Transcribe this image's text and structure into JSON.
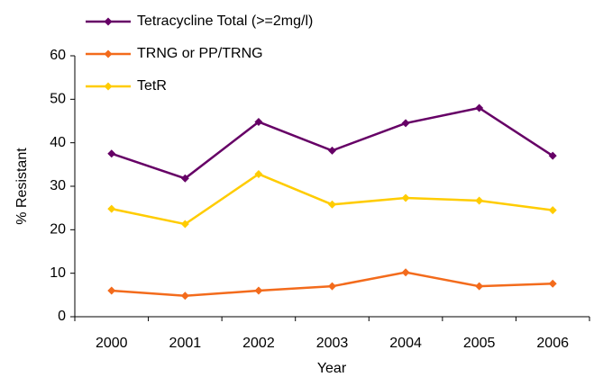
{
  "chart_data": {
    "type": "line",
    "categories": [
      "2000",
      "2001",
      "2002",
      "2003",
      "2004",
      "2005",
      "2006"
    ],
    "series": [
      {
        "name": "Tetracycline Total (>=2mg/l)",
        "color": "#660066",
        "values": [
          37.5,
          31.8,
          44.8,
          38.2,
          44.5,
          48,
          37
        ]
      },
      {
        "name": "TRNG or PP/TRNG",
        "color": "#f36b1c",
        "values": [
          6,
          4.8,
          6,
          7,
          10.2,
          7,
          7.6
        ]
      },
      {
        "name": "TetR",
        "color": "#ffcc00",
        "values": [
          24.8,
          21.3,
          32.8,
          25.8,
          27.3,
          26.7,
          24.5
        ]
      }
    ],
    "ylim": [
      0,
      60
    ],
    "yticks": [
      0,
      10,
      20,
      30,
      40,
      50,
      60
    ],
    "ylabel": "% Resistant",
    "xlabel": "Year",
    "grid": false,
    "legend": "top-left"
  }
}
